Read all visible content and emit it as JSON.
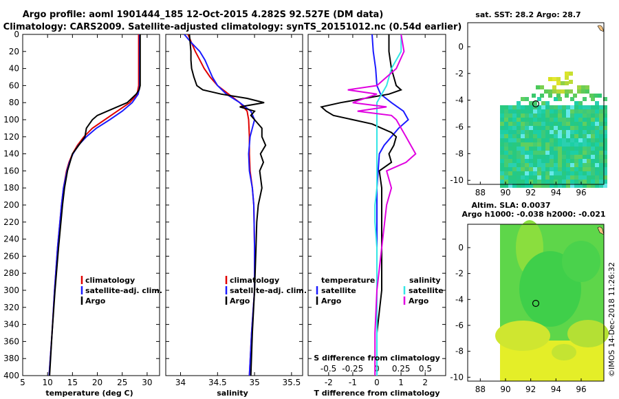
{
  "title_line1": "Argo profile: aoml 1901444_185 12-Oct-2015 4.282S 92.527E (DM data)",
  "title_line2": "Climatology: CARS2009. Satellite-adjusted climatology: synTS_20151012.nc (0.54d earlier)",
  "credit": "©IMOS 14-Dec-2018 11:26:32",
  "colors": {
    "climatology": "#e00000",
    "satellite_clim": "#1a1aff",
    "argo": "#000000",
    "salinity_sat": "#33e6e6",
    "salinity_argo": "#e000e0"
  },
  "chart_data": [
    {
      "type": "line",
      "id": "temperature",
      "xlabel": "temperature (deg C)",
      "ylabel": "",
      "xlim": [
        5,
        32.5
      ],
      "ylim": [
        400,
        0
      ],
      "xticks": [
        5,
        10,
        15,
        20,
        25,
        30
      ],
      "yticks": [
        0,
        20,
        40,
        60,
        80,
        100,
        120,
        140,
        160,
        180,
        200,
        220,
        240,
        260,
        280,
        300,
        320,
        340,
        360,
        380,
        400
      ],
      "legend": {
        "position": "lower-right",
        "entries": [
          "climatology",
          "satellite-adj. clim.",
          "Argo"
        ]
      },
      "depth": [
        0,
        10,
        20,
        30,
        40,
        50,
        60,
        70,
        80,
        90,
        100,
        110,
        120,
        130,
        140,
        150,
        160,
        180,
        200,
        250,
        300,
        350,
        400
      ],
      "series": [
        {
          "name": "climatology",
          "color_key": "climatology",
          "values": [
            28.3,
            28.3,
            28.3,
            28.3,
            28.3,
            28.3,
            28.3,
            28.0,
            26.5,
            24.0,
            21.5,
            19.0,
            17.3,
            16.0,
            15.0,
            14.3,
            13.8,
            13.2,
            12.8,
            12.0,
            11.4,
            10.9,
            10.3
          ]
        },
        {
          "name": "satellite-adj. clim.",
          "color_key": "satellite_clim",
          "values": [
            28.5,
            28.5,
            28.5,
            28.5,
            28.5,
            28.5,
            28.5,
            28.2,
            27.0,
            25.0,
            22.5,
            19.8,
            17.8,
            16.2,
            15.1,
            14.4,
            13.9,
            13.2,
            12.8,
            12.0,
            11.4,
            10.9,
            10.3
          ]
        },
        {
          "name": "Argo",
          "color_key": "argo",
          "depth": [
            0,
            20,
            40,
            60,
            65,
            70,
            80,
            90,
            95,
            100,
            110,
            120,
            140,
            160,
            180,
            200,
            250,
            300,
            350,
            400
          ],
          "values": [
            28.6,
            28.6,
            28.6,
            28.6,
            28.4,
            27.8,
            26.0,
            22.0,
            20.0,
            19.0,
            17.8,
            17.5,
            15.0,
            14.0,
            13.4,
            13.0,
            12.2,
            11.5,
            10.9,
            10.4
          ]
        }
      ]
    },
    {
      "type": "line",
      "id": "salinity",
      "xlabel": "salinity",
      "xlim": [
        33.8,
        35.65
      ],
      "ylim": [
        400,
        0
      ],
      "xticks": [
        34,
        34.5,
        35,
        35.5
      ],
      "xtick_labels": [
        "34",
        "34.5",
        "35",
        "35.5"
      ],
      "legend": {
        "position": "lower-right",
        "entries": [
          "climatology",
          "satellite-adj. clim.",
          "Argo"
        ]
      },
      "series": [
        {
          "name": "climatology",
          "color_key": "climatology",
          "depth": [
            0,
            10,
            20,
            30,
            40,
            50,
            60,
            70,
            80,
            90,
            100,
            120,
            140,
            160,
            180,
            200,
            250,
            300,
            350,
            400
          ],
          "values": [
            34.1,
            34.15,
            34.2,
            34.26,
            34.32,
            34.4,
            34.5,
            34.65,
            34.8,
            34.9,
            34.92,
            34.93,
            34.93,
            34.94,
            34.97,
            34.99,
            35.0,
            35.0,
            34.96,
            34.93
          ]
        },
        {
          "name": "satellite-adj. clim.",
          "color_key": "satellite_clim",
          "depth": [
            0,
            10,
            20,
            30,
            40,
            50,
            60,
            70,
            80,
            90,
            100,
            120,
            140,
            160,
            180,
            200,
            250,
            300,
            350,
            400
          ],
          "values": [
            34.05,
            34.15,
            34.26,
            34.33,
            34.38,
            34.43,
            34.5,
            34.62,
            34.8,
            34.95,
            35.0,
            34.94,
            34.92,
            34.93,
            34.97,
            34.99,
            35.0,
            35.0,
            34.96,
            34.93
          ]
        },
        {
          "name": "Argo",
          "color_key": "argo",
          "depth": [
            0,
            10,
            20,
            30,
            40,
            50,
            60,
            65,
            70,
            75,
            80,
            85,
            90,
            95,
            100,
            110,
            120,
            130,
            140,
            150,
            160,
            180,
            200,
            220,
            250,
            300,
            350,
            400
          ],
          "values": [
            34.12,
            34.13,
            34.14,
            34.14,
            34.15,
            34.18,
            34.22,
            34.3,
            34.55,
            34.9,
            35.13,
            34.8,
            35.0,
            34.95,
            35.0,
            35.1,
            35.1,
            35.15,
            35.08,
            35.12,
            35.07,
            35.1,
            35.05,
            35.03,
            35.02,
            35.0,
            34.97,
            34.95
          ]
        }
      ]
    },
    {
      "type": "line",
      "id": "differences",
      "xlabel": "T difference from climatology",
      "x2label": "S difference from climatology",
      "xlim": [
        -2.85,
        2.85
      ],
      "ylim": [
        400,
        0
      ],
      "xticks": [
        -2,
        -1,
        0,
        1,
        2
      ],
      "x2ticks": [
        -0.5,
        -0.25,
        0,
        0.25,
        0.5
      ],
      "x2tick_labels": [
        "-0.5",
        "-0.25",
        "0",
        "0.25",
        "0.5"
      ],
      "legend": {
        "position": "lower-center",
        "temperature_header": "temperature",
        "salinity_header": "salinity",
        "entries": [
          "satellite",
          "Argo",
          "satellite",
          "Argo"
        ]
      },
      "series": [
        {
          "name": "temperature satellite",
          "color_key": "satellite_clim",
          "depth": [
            0,
            20,
            40,
            60,
            70,
            80,
            90,
            100,
            110,
            120,
            130,
            140,
            160,
            180,
            200,
            250,
            300,
            350,
            400
          ],
          "values": [
            -0.2,
            -0.15,
            -0.05,
            0.0,
            0.15,
            0.6,
            1.1,
            1.3,
            0.9,
            0.6,
            0.3,
            0.1,
            0.05,
            0.0,
            0.0,
            0.0,
            0.0,
            0.0,
            0.0
          ]
        },
        {
          "name": "temperature Argo",
          "color_key": "argo",
          "depth": [
            0,
            20,
            40,
            60,
            65,
            70,
            75,
            80,
            85,
            90,
            95,
            100,
            105,
            110,
            115,
            120,
            130,
            140,
            150,
            160,
            180,
            200,
            250,
            300,
            350,
            400
          ],
          "values": [
            0.5,
            0.5,
            0.6,
            0.8,
            1.0,
            0.5,
            -0.5,
            -1.5,
            -2.3,
            -2.1,
            -1.8,
            -1.0,
            -0.2,
            0.2,
            0.6,
            0.8,
            0.7,
            0.5,
            0.6,
            0.1,
            0.2,
            0.2,
            0.2,
            0.2,
            0.0,
            0.0
          ]
        },
        {
          "name": "salinity satellite",
          "color_key": "salinity_sat",
          "depth": [
            0,
            20,
            40,
            60,
            70,
            80,
            90,
            100,
            110,
            120,
            140,
            160,
            180,
            200,
            220,
            250,
            300,
            350,
            400
          ],
          "values": [
            0.25,
            0.25,
            0.15,
            0.1,
            0.05,
            0.0,
            0.0,
            0.0,
            0.0,
            0.0,
            0.0,
            0.0,
            0.0,
            -0.02,
            -0.02,
            0.0,
            0.0,
            0.0,
            0.0
          ]
        },
        {
          "name": "salinity Argo",
          "color_key": "salinity_argo",
          "depth": [
            0,
            20,
            40,
            60,
            65,
            70,
            80,
            85,
            90,
            95,
            100,
            110,
            120,
            130,
            140,
            150,
            160,
            180,
            200,
            250,
            300,
            350,
            400
          ],
          "values": [
            0.25,
            0.28,
            0.2,
            0.0,
            -0.3,
            0.0,
            -0.25,
            0.1,
            -0.2,
            0.15,
            0.2,
            0.25,
            0.3,
            0.35,
            0.4,
            0.3,
            0.1,
            0.15,
            0.1,
            0.05,
            0.0,
            -0.02,
            -0.02
          ]
        }
      ]
    },
    {
      "type": "heatmap",
      "id": "sst-map",
      "title": "sat. SST: 28.2 Argo: 28.7",
      "xlim": [
        87,
        97.8
      ],
      "ylim": [
        -10.3,
        1.8
      ],
      "xticks": [
        88,
        90,
        92,
        94,
        96
      ],
      "yticks": [
        0,
        -2,
        -4,
        -6,
        -8,
        -10
      ],
      "marker": {
        "lon": 92.527,
        "lat": -4.282
      }
    },
    {
      "type": "heatmap",
      "id": "sla-map",
      "title": "Altim. SLA: 0.0037",
      "subtitle": "Argo h1000: -0.038 h2000: -0.021",
      "xlim": [
        87,
        97.8
      ],
      "ylim": [
        -10.3,
        1.8
      ],
      "xticks": [
        88,
        90,
        92,
        94,
        96
      ],
      "yticks": [
        0,
        -2,
        -4,
        -6,
        -8,
        -10
      ],
      "marker": {
        "lon": 92.527,
        "lat": -4.282
      }
    }
  ]
}
